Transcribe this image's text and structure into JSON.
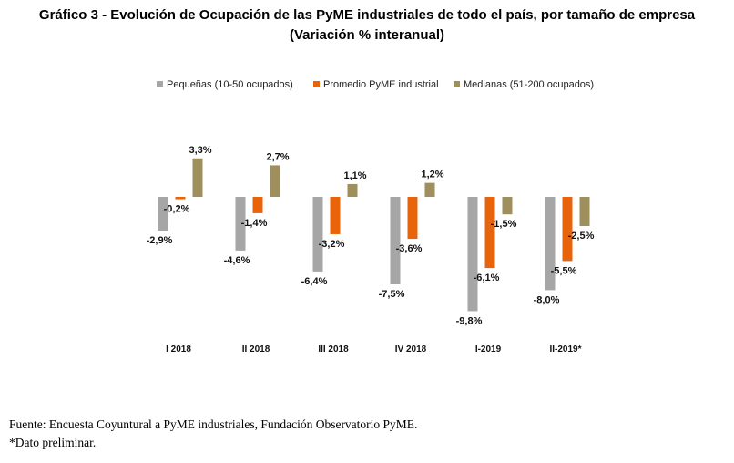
{
  "header": {
    "title_line1": "Gráfico 3 - Evolución de Ocupación de las PyME industriales de todo el país, por tamaño de empresa",
    "title_line2": "(Variación % interanual)"
  },
  "footer": {
    "source": "Fuente: Encuesta Coyuntural a PyME industriales, Fundación Observatorio PyME.",
    "note": "*Dato preliminar."
  },
  "chart_data": {
    "type": "bar",
    "categories": [
      "I 2018",
      "II 2018",
      "III 2018",
      "IV 2018",
      "I-2019",
      "II-2019*"
    ],
    "series": [
      {
        "name": "Pequeñas (10-50 ocupados)",
        "color": "#a6a6a6",
        "values": [
          -2.9,
          -4.6,
          -6.4,
          -7.5,
          -9.8,
          -8.0
        ],
        "labels": [
          "-2,9%",
          "-4,6%",
          "-6,4%",
          "-7,5%",
          "-9,8%",
          "-8,0%"
        ]
      },
      {
        "name": "Promedio PyME industrial",
        "color": "#e8640c",
        "values": [
          -0.2,
          -1.4,
          -3.2,
          -3.6,
          -6.1,
          -5.5
        ],
        "labels": [
          "-0,2%",
          "-1,4%",
          "-3,2%",
          "-3,6%",
          "-6,1%",
          "-5,5%"
        ]
      },
      {
        "name": "Medianas (51-200 ocupados)",
        "color": "#9e8f5c",
        "values": [
          3.3,
          2.7,
          1.1,
          1.2,
          -1.5,
          -2.5
        ],
        "labels": [
          "3,3%",
          "2,7%",
          "1,1%",
          "1,2%",
          "-1,5%",
          "-2,5%"
        ]
      }
    ],
    "legend_position": "top",
    "grid": false,
    "ylim": [
      -10,
      4
    ]
  }
}
